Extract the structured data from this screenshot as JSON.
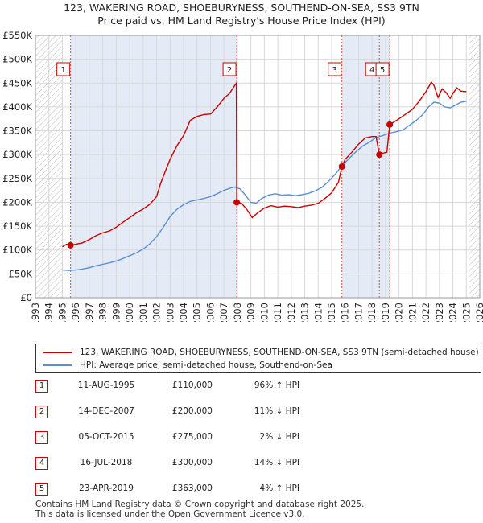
{
  "title_line1": "123, WAKERING ROAD, SHOEBURYNESS, SOUTHEND-ON-SEA, SS3 9TN",
  "title_line2": "Price paid vs. HM Land Registry's House Price Index (HPI)",
  "legend": {
    "property": "123, WAKERING ROAD, SHOEBURYNESS, SOUTHEND-ON-SEA, SS3 9TN (semi-detached house)",
    "hpi": "HPI: Average price, semi-detached house, Southend-on-Sea"
  },
  "colors": {
    "property_line": "#cc0000",
    "hpi_line": "#5b8fd0",
    "sale_band": "#dde6f5",
    "hatch": "#bbbbbb",
    "grid": "#d8d8d8"
  },
  "sales": [
    {
      "id": "1",
      "date": "11-AUG-1995",
      "price": "£110,000",
      "hpi": "96% ↑ HPI"
    },
    {
      "id": "2",
      "date": "14-DEC-2007",
      "price": "£200,000",
      "hpi": "11% ↓ HPI"
    },
    {
      "id": "3",
      "date": "05-OCT-2015",
      "price": "£275,000",
      "hpi": "2% ↓ HPI"
    },
    {
      "id": "4",
      "date": "16-JUL-2018",
      "price": "£300,000",
      "hpi": "14% ↓ HPI"
    },
    {
      "id": "5",
      "date": "23-APR-2019",
      "price": "£363,000",
      "hpi": "4% ↑ HPI"
    }
  ],
  "footer_line1": "Contains HM Land Registry data © Crown copyright and database right 2025.",
  "footer_line2": "This data is licensed under the Open Government Licence v3.0.",
  "chart_data": {
    "type": "line",
    "x_range": [
      1993,
      2026
    ],
    "ylim": [
      0,
      550000
    ],
    "y_ticks": [
      0,
      50000,
      100000,
      150000,
      200000,
      250000,
      300000,
      350000,
      400000,
      450000,
      500000,
      550000
    ],
    "y_tick_labels": [
      "£0",
      "£50K",
      "£100K",
      "£150K",
      "£200K",
      "£250K",
      "£300K",
      "£350K",
      "£400K",
      "£450K",
      "£500K",
      "£550K"
    ],
    "x_ticks": [
      1993,
      1994,
      1995,
      1996,
      1997,
      1998,
      1999,
      2000,
      2001,
      2002,
      2003,
      2004,
      2005,
      2006,
      2007,
      2008,
      2009,
      2010,
      2011,
      2012,
      2013,
      2014,
      2015,
      2016,
      2017,
      2018,
      2019,
      2020,
      2021,
      2022,
      2023,
      2024,
      2025,
      2026
    ],
    "grid": true,
    "hatched_before": 1995.0,
    "hatched_after": 2025.2,
    "sale_markers": [
      {
        "label": "1",
        "x": 1995.61,
        "y": 110000
      },
      {
        "label": "2",
        "x": 2007.95,
        "y": 200000
      },
      {
        "label": "3",
        "x": 2015.76,
        "y": 275000
      },
      {
        "label": "4",
        "x": 2018.54,
        "y": 300000
      },
      {
        "label": "5",
        "x": 2019.31,
        "y": 363000
      }
    ],
    "series": [
      {
        "name": "123, WAKERING ROAD, SHOEBURYNESS, SOUTHEND-ON-SEA, SS3 9TN (semi-detached house)",
        "color": "#cc0000",
        "points": [
          [
            1995.0,
            107000
          ],
          [
            1995.3,
            112000
          ],
          [
            1995.61,
            110000
          ],
          [
            1996.0,
            112000
          ],
          [
            1996.5,
            115000
          ],
          [
            1997.0,
            122000
          ],
          [
            1997.5,
            130000
          ],
          [
            1998.0,
            136000
          ],
          [
            1998.5,
            140000
          ],
          [
            1999.0,
            148000
          ],
          [
            1999.5,
            158000
          ],
          [
            2000.0,
            168000
          ],
          [
            2000.5,
            178000
          ],
          [
            2001.0,
            186000
          ],
          [
            2001.5,
            196000
          ],
          [
            2002.0,
            212000
          ],
          [
            2002.3,
            240000
          ],
          [
            2002.6,
            262000
          ],
          [
            2003.0,
            290000
          ],
          [
            2003.5,
            318000
          ],
          [
            2004.0,
            340000
          ],
          [
            2004.5,
            372000
          ],
          [
            2005.0,
            380000
          ],
          [
            2005.5,
            384000
          ],
          [
            2006.0,
            385000
          ],
          [
            2006.5,
            400000
          ],
          [
            2007.0,
            418000
          ],
          [
            2007.4,
            428000
          ],
          [
            2007.85,
            447000
          ],
          [
            2007.92,
            450000
          ],
          [
            2007.95,
            200000
          ],
          [
            2008.3,
            198000
          ],
          [
            2008.7,
            185000
          ],
          [
            2009.1,
            168000
          ],
          [
            2009.5,
            178000
          ],
          [
            2010.0,
            188000
          ],
          [
            2010.5,
            193000
          ],
          [
            2011.0,
            190000
          ],
          [
            2011.5,
            192000
          ],
          [
            2012.0,
            191000
          ],
          [
            2012.5,
            189000
          ],
          [
            2013.0,
            192000
          ],
          [
            2013.5,
            194000
          ],
          [
            2014.0,
            198000
          ],
          [
            2014.5,
            208000
          ],
          [
            2015.0,
            220000
          ],
          [
            2015.5,
            242000
          ],
          [
            2015.76,
            275000
          ],
          [
            2016.0,
            290000
          ],
          [
            2016.5,
            305000
          ],
          [
            2017.0,
            322000
          ],
          [
            2017.5,
            335000
          ],
          [
            2018.0,
            338000
          ],
          [
            2018.3,
            338000
          ],
          [
            2018.54,
            300000
          ],
          [
            2018.8,
            303000
          ],
          [
            2019.1,
            305000
          ],
          [
            2019.31,
            363000
          ],
          [
            2019.6,
            368000
          ],
          [
            2020.0,
            375000
          ],
          [
            2020.5,
            385000
          ],
          [
            2021.0,
            395000
          ],
          [
            2021.5,
            412000
          ],
          [
            2022.0,
            432000
          ],
          [
            2022.4,
            452000
          ],
          [
            2022.6,
            445000
          ],
          [
            2022.9,
            420000
          ],
          [
            2023.2,
            438000
          ],
          [
            2023.5,
            430000
          ],
          [
            2023.8,
            418000
          ],
          [
            2024.0,
            428000
          ],
          [
            2024.3,
            440000
          ],
          [
            2024.6,
            433000
          ],
          [
            2025.0,
            432000
          ]
        ]
      },
      {
        "name": "HPI: Average price, semi-detached house, Southend-on-Sea",
        "color": "#5b8fd0",
        "points": [
          [
            1995.0,
            58000
          ],
          [
            1995.5,
            57000
          ],
          [
            1996.0,
            58000
          ],
          [
            1996.5,
            60000
          ],
          [
            1997.0,
            63000
          ],
          [
            1997.5,
            67000
          ],
          [
            1998.0,
            70000
          ],
          [
            1998.5,
            73000
          ],
          [
            1999.0,
            77000
          ],
          [
            1999.5,
            82000
          ],
          [
            2000.0,
            88000
          ],
          [
            2000.5,
            94000
          ],
          [
            2001.0,
            102000
          ],
          [
            2001.5,
            113000
          ],
          [
            2002.0,
            128000
          ],
          [
            2002.5,
            148000
          ],
          [
            2003.0,
            170000
          ],
          [
            2003.5,
            185000
          ],
          [
            2004.0,
            195000
          ],
          [
            2004.5,
            202000
          ],
          [
            2005.0,
            205000
          ],
          [
            2005.5,
            208000
          ],
          [
            2006.0,
            212000
          ],
          [
            2006.5,
            218000
          ],
          [
            2007.0,
            225000
          ],
          [
            2007.5,
            230000
          ],
          [
            2007.8,
            232000
          ],
          [
            2008.2,
            228000
          ],
          [
            2008.6,
            215000
          ],
          [
            2009.0,
            200000
          ],
          [
            2009.4,
            198000
          ],
          [
            2009.8,
            208000
          ],
          [
            2010.3,
            215000
          ],
          [
            2010.8,
            218000
          ],
          [
            2011.3,
            215000
          ],
          [
            2011.8,
            216000
          ],
          [
            2012.3,
            214000
          ],
          [
            2012.8,
            216000
          ],
          [
            2013.3,
            219000
          ],
          [
            2013.8,
            224000
          ],
          [
            2014.3,
            232000
          ],
          [
            2014.8,
            245000
          ],
          [
            2015.3,
            260000
          ],
          [
            2015.8,
            278000
          ],
          [
            2016.3,
            292000
          ],
          [
            2016.8,
            306000
          ],
          [
            2017.3,
            318000
          ],
          [
            2017.8,
            326000
          ],
          [
            2018.3,
            336000
          ],
          [
            2018.8,
            340000
          ],
          [
            2019.3,
            345000
          ],
          [
            2019.8,
            348000
          ],
          [
            2020.3,
            352000
          ],
          [
            2020.8,
            362000
          ],
          [
            2021.3,
            372000
          ],
          [
            2021.8,
            385000
          ],
          [
            2022.2,
            400000
          ],
          [
            2022.6,
            410000
          ],
          [
            2023.0,
            408000
          ],
          [
            2023.4,
            400000
          ],
          [
            2023.8,
            398000
          ],
          [
            2024.2,
            404000
          ],
          [
            2024.6,
            410000
          ],
          [
            2025.0,
            412000
          ]
        ]
      }
    ]
  }
}
